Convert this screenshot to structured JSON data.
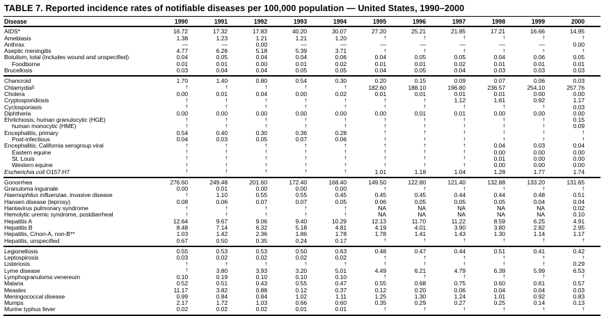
{
  "title": "TABLE 7. Reported incidence rates of notifiable diseases per 100,000 population — United States, 1990–2000",
  "table": {
    "columns": [
      "Disease",
      "1990",
      "1991",
      "1992",
      "1993",
      "1994",
      "1995",
      "1996",
      "1997",
      "1998",
      "1999",
      "2000"
    ],
    "missing_marker": "†",
    "groups": [
      {
        "rows": [
          {
            "label": "AIDS*",
            "values": [
              "16.72",
              "17.32",
              "17.83",
              "40.20",
              "30.07",
              "27.20",
              "25.21",
              "21.85",
              "17.21",
              "16.66",
              "14.95"
            ]
          },
          {
            "label": "Amebiasis",
            "values": [
              "1.38",
              "1.23",
              "1.21",
              "1.21",
              "1.20",
              "†",
              "†",
              "†",
              "†",
              "†",
              "†"
            ]
          },
          {
            "label": "Anthrax",
            "values": [
              "—",
              "—",
              "0.00",
              "—",
              "—",
              "—",
              "—",
              "—",
              "—",
              "—",
              "0.00"
            ]
          },
          {
            "label": "Aseptic meningitis",
            "values": [
              "4.77",
              "6.26",
              "5.18",
              "5.39",
              "3.71",
              "†",
              "†",
              "†",
              "†",
              "†",
              "†"
            ]
          },
          {
            "label": "Botulism, total (includes wound and unspecified)",
            "values": [
              "0.04",
              "0.05",
              "0.04",
              "0.04",
              "0.06",
              "0.04",
              "0.05",
              "0.05",
              "0.04",
              "0.06",
              "0.05"
            ]
          },
          {
            "label": "Foodborne",
            "indent": true,
            "values": [
              "0.01",
              "0.01",
              "0.00",
              "0.01",
              "0.02",
              "0.01",
              "0.01",
              "0.02",
              "0.01",
              "0.01",
              "0.01"
            ]
          },
          {
            "label": "Brucellosis",
            "values": [
              "0.03",
              "0.04",
              "0.04",
              "0.05",
              "0.05",
              "0.04",
              "0.05",
              "0.04",
              "0.03",
              "0.03",
              "0.03"
            ]
          }
        ]
      },
      {
        "rows": [
          {
            "label": "Chancroid",
            "values": [
              "1.70",
              "1.40",
              "0.80",
              "0.54",
              "0.30",
              "0.20",
              "0.15",
              "0.09",
              "0.07",
              "0.06",
              "0.03"
            ]
          },
          {
            "label": "Chlamydia",
            "sup": "§",
            "values": [
              "†",
              "†",
              "†",
              "†",
              "†",
              "182.60",
              "188.10",
              "196.80",
              "236.57",
              "254.10",
              "257.76"
            ]
          },
          {
            "label": "Cholera",
            "values": [
              "0.00",
              "0.01",
              "0.04",
              "0.00",
              "0.02",
              "0.01",
              "0.01",
              "0.01",
              "0.01",
              "0.00",
              "0.00"
            ]
          },
          {
            "label": "Cryptosporidiosis",
            "values": [
              "†",
              "†",
              "†",
              "†",
              "†",
              "†",
              "†",
              "1.12",
              "1.61",
              "0.92",
              "1.17"
            ]
          },
          {
            "label": "Cyclosporiasis",
            "values": [
              "†",
              "†",
              "†",
              "†",
              "†",
              "†",
              "†",
              "†",
              "†",
              "†",
              "0.03"
            ]
          },
          {
            "label": "Diphtheria",
            "values": [
              "0.00",
              "0.00",
              "0.00",
              "0.00",
              "0.00",
              "0.00",
              "0.01",
              "0.01",
              "0.00",
              "0.00",
              "0.00"
            ]
          },
          {
            "label": "Ehrlichiosis, human granulocytic (HGE)",
            "values": [
              "†",
              "†",
              "†",
              "†",
              "†",
              "†",
              "†",
              "†",
              "†",
              "†",
              "0.15"
            ]
          },
          {
            "label": "human monocytic (HME)",
            "indent": true,
            "values": [
              "†",
              "†",
              "†",
              "†",
              "†",
              "†",
              "†",
              "†",
              "†",
              "†",
              "0.09"
            ]
          },
          {
            "label": "Encephalitis, primary",
            "values": [
              "0.54",
              "0.40",
              "0.30",
              "0.36",
              "0.28",
              "†",
              "†",
              "†",
              "†",
              "†",
              "†"
            ]
          },
          {
            "label": "Post-infectious",
            "indent": true,
            "values": [
              "0.04",
              "0.03",
              "0.05",
              "0.07",
              "0.06",
              "†",
              "†",
              "†",
              "†",
              "†",
              "†"
            ]
          },
          {
            "label": "Encephalitis, California serogroup viral",
            "values": [
              "†",
              "†",
              "†",
              "†",
              "†",
              "†",
              "†",
              "†",
              "0.04",
              "0.03",
              "0.04"
            ]
          },
          {
            "label": "Eastern equine",
            "indent": true,
            "values": [
              "†",
              "†",
              "†",
              "†",
              "†",
              "†",
              "†",
              "†",
              "0.00",
              "0.00",
              "0.00"
            ]
          },
          {
            "label": "St. Louis",
            "indent": true,
            "values": [
              "†",
              "†",
              "†",
              "†",
              "†",
              "†",
              "†",
              "†",
              "0.01",
              "0.00",
              "0.00"
            ]
          },
          {
            "label": "Western equine",
            "indent": true,
            "values": [
              "†",
              "†",
              "†",
              "†",
              "†",
              "†",
              "†",
              "†",
              "0.00",
              "0.00",
              "0.00"
            ]
          },
          {
            "label": " O157:H7",
            "italic_prefix": "Escherichia coli",
            "values": [
              "†",
              "†",
              "†",
              "†",
              "†",
              "1.01",
              "1.18",
              "1.04",
              "1.28",
              "1.77",
              "1.74"
            ]
          }
        ]
      },
      {
        "rows": [
          {
            "label": "Gonorrhea",
            "values": [
              "276.60",
              "249.48",
              "201.60",
              "172.40",
              "168.40",
              "149.50",
              "122.80",
              "121.40",
              "132.88",
              "133.20",
              "131.65"
            ]
          },
          {
            "label": "Granuloma inguinale",
            "values": [
              "0.00",
              "0.01",
              "0.00",
              "0.00",
              "0.00",
              "†",
              "†",
              "†",
              "†",
              "†",
              "†"
            ]
          },
          {
            "label": ", invasive disease",
            "italic_prefix": "Haemophilus influenzae",
            "values": [
              "†",
              "1.10",
              "0.55",
              "0.55",
              "0.45",
              "0.45",
              "0.45",
              "0.44",
              "0.44",
              "0.48",
              "0.51"
            ]
          },
          {
            "label": "Hansen disease (leprosy)",
            "values": [
              "0.08",
              "0.06",
              "0.07",
              "0.07",
              "0.05",
              "0.06",
              "0.05",
              "0.05",
              "0.05",
              "0.04",
              "0.04"
            ]
          },
          {
            "label": "Hantavirus pulmonary syndrome",
            "values": [
              "†",
              "†",
              "†",
              "†",
              "†",
              "NA",
              "NA",
              "NA",
              "NA",
              "NA",
              "0.02"
            ]
          },
          {
            "label": "Hemolytic uremic syndrome, postdiarrheal",
            "values": [
              "†",
              "†",
              "†",
              "†",
              "†",
              "NA",
              "NA",
              "NA",
              "NA",
              "NA",
              "0.10"
            ]
          },
          {
            "label": "Hepatitis A",
            "values": [
              "12.64",
              "9.67",
              "9.06",
              "9.40",
              "10.29",
              "12.13",
              "11.70",
              "11.22",
              "8.59",
              "6.25",
              "4.91"
            ]
          },
          {
            "label": "Hepatitis B",
            "values": [
              "8.48",
              "7.14",
              "6.32",
              "5.18",
              "4.81",
              "4.19",
              "4.01",
              "3.90",
              "3.80",
              "2.82",
              "2.95"
            ]
          },
          {
            "label": "Hepatitis, C/non-A, non-B**",
            "values": [
              "1.03",
              "1.42",
              "2.36",
              "1.86",
              "1.78",
              "1.78",
              "1.41",
              "1.43",
              "1.30",
              "1.14",
              "1.17"
            ]
          },
          {
            "label": "Hepatitis, unspecified",
            "values": [
              "0.67",
              "0.50",
              "0.35",
              "0.24",
              "0.17",
              "†",
              "†",
              "†",
              "†",
              "†",
              "†"
            ]
          }
        ]
      },
      {
        "rows": [
          {
            "label": "Legionellosis",
            "values": [
              "0.55",
              "0.53",
              "0.53",
              "0.50",
              "0.63",
              "0.48",
              "0.47",
              "0.44",
              "0.51",
              "0.41",
              "0.42"
            ]
          },
          {
            "label": "Leptospirosis",
            "values": [
              "0.03",
              "0.02",
              "0.02",
              "0.02",
              "0.02",
              "†",
              "†",
              "†",
              "†",
              "†",
              "†"
            ]
          },
          {
            "label": "Listeriosis",
            "values": [
              "†",
              "†",
              "†",
              "†",
              "†",
              "†",
              "†",
              "†",
              "†",
              "†",
              "0.29"
            ]
          },
          {
            "label": "Lyme disease",
            "values": [
              "†",
              "3.80",
              "3.93",
              "3.20",
              "5.01",
              "4.49",
              "6.21",
              "4.79",
              "6.39",
              "5.99",
              "6.53"
            ]
          },
          {
            "label": "Lymphogranuloma venereum",
            "values": [
              "0.10",
              "0.19",
              "0.10",
              "0.10",
              "0.10",
              "†",
              "†",
              "†",
              "†",
              "†",
              "†"
            ]
          },
          {
            "label": "Malaria",
            "values": [
              "0.52",
              "0.51",
              "0.43",
              "0.55",
              "0.47",
              "0.55",
              "0.68",
              "0.75",
              "0.60",
              "0.61",
              "0.57"
            ]
          },
          {
            "label": "Measles",
            "values": [
              "11.17",
              "3.82",
              "0.88",
              "0.12",
              "0.37",
              "0.12",
              "0.20",
              "0.06",
              "0.04",
              "0.04",
              "0.03"
            ]
          },
          {
            "label": "Meningococcal disease",
            "values": [
              "0.99",
              "0.84",
              "0.84",
              "1.02",
              "1.11",
              "1.25",
              "1.30",
              "1.24",
              "1.01",
              "0.92",
              "0.83"
            ]
          },
          {
            "label": "Mumps",
            "values": [
              "2.17",
              "1.72",
              "1.03",
              "0.66",
              "0.60",
              "0.35",
              "0.29",
              "0.27",
              "0.25",
              "0.14",
              "0.13"
            ]
          },
          {
            "label": "Murine typhus fever",
            "values": [
              "0.02",
              "0.02",
              "0.02",
              "0.01",
              "0.01",
              "†",
              "†",
              "†",
              "†",
              "†",
              "†"
            ]
          }
        ]
      }
    ]
  }
}
